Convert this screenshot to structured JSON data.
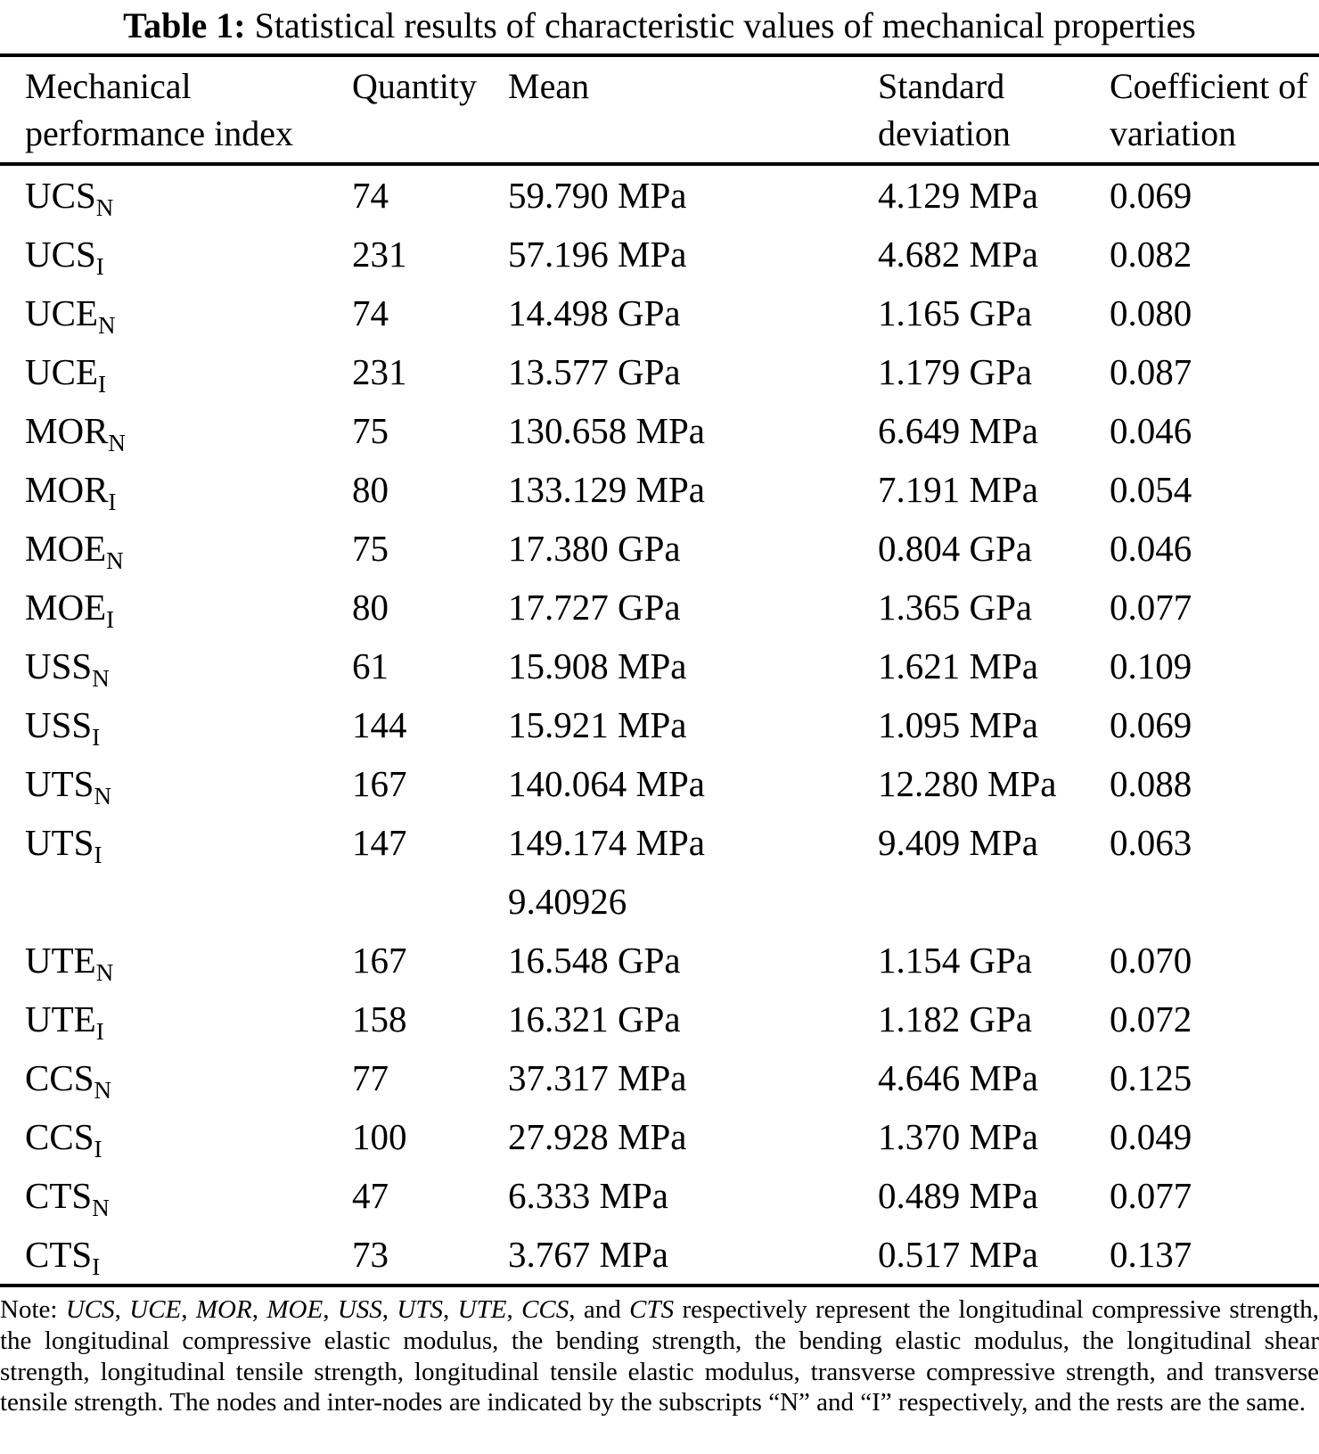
{
  "document": {
    "title": {
      "label": "Table 1:",
      "text": "Statistical results of characteristic values of mechanical properties"
    }
  },
  "table": {
    "headers": [
      "Mechanical performance index",
      "Quantity",
      "Mean",
      "Standard deviation",
      "Coefficient of variation"
    ],
    "rows": [
      {
        "index": "UCS",
        "sub": "N",
        "quantity": "74",
        "mean": [
          "59.790 MPa"
        ],
        "std": "4.129 MPa",
        "cov": "0.069"
      },
      {
        "index": "UCS",
        "sub": "I",
        "quantity": "231",
        "mean": [
          "57.196 MPa"
        ],
        "std": "4.682 MPa",
        "cov": "0.082"
      },
      {
        "index": "UCE",
        "sub": "N",
        "quantity": "74",
        "mean": [
          "14.498 GPa"
        ],
        "std": "1.165 GPa",
        "cov": "0.080"
      },
      {
        "index": "UCE",
        "sub": "I",
        "quantity": "231",
        "mean": [
          "13.577 GPa"
        ],
        "std": "1.179 GPa",
        "cov": "0.087"
      },
      {
        "index": "MOR",
        "sub": "N",
        "quantity": "75",
        "mean": [
          "130.658 MPa"
        ],
        "std": "6.649 MPa",
        "cov": "0.046"
      },
      {
        "index": "MOR",
        "sub": "I",
        "quantity": "80",
        "mean": [
          "133.129 MPa"
        ],
        "std": "7.191 MPa",
        "cov": "0.054"
      },
      {
        "index": "MOE",
        "sub": "N",
        "quantity": "75",
        "mean": [
          "17.380 GPa"
        ],
        "std": "0.804 GPa",
        "cov": "0.046"
      },
      {
        "index": "MOE",
        "sub": "I",
        "quantity": "80",
        "mean": [
          "17.727 GPa"
        ],
        "std": "1.365 GPa",
        "cov": "0.077"
      },
      {
        "index": "USS",
        "sub": "N",
        "quantity": "61",
        "mean": [
          "15.908 MPa"
        ],
        "std": "1.621 MPa",
        "cov": "0.109"
      },
      {
        "index": "USS",
        "sub": "I",
        "quantity": "144",
        "mean": [
          "15.921 MPa"
        ],
        "std": "1.095 MPa",
        "cov": "0.069"
      },
      {
        "index": "UTS",
        "sub": "N",
        "quantity": "167",
        "mean": [
          "140.064 MPa"
        ],
        "std": "12.280 MPa",
        "cov": "0.088"
      },
      {
        "index": "UTS",
        "sub": "I",
        "quantity": "147",
        "mean": [
          "149.174 MPa",
          "9.40926"
        ],
        "std": "9.409 MPa",
        "cov": "0.063"
      },
      {
        "index": "UTE",
        "sub": "N",
        "quantity": "167",
        "mean": [
          "16.548 GPa"
        ],
        "std": "1.154 GPa",
        "cov": "0.070"
      },
      {
        "index": "UTE",
        "sub": "I",
        "quantity": "158",
        "mean": [
          "16.321 GPa"
        ],
        "std": "1.182 GPa",
        "cov": "0.072"
      },
      {
        "index": "CCS",
        "sub": "N",
        "quantity": "77",
        "mean": [
          "37.317 MPa"
        ],
        "std": "4.646 MPa",
        "cov": "0.125"
      },
      {
        "index": "CCS",
        "sub": "I",
        "quantity": "100",
        "mean": [
          "27.928 MPa"
        ],
        "std": "1.370 MPa",
        "cov": "0.049"
      },
      {
        "index": "CTS",
        "sub": "N",
        "quantity": "47",
        "mean": [
          "6.333 MPa"
        ],
        "std": "0.489 MPa",
        "cov": "0.077"
      },
      {
        "index": "CTS",
        "sub": "I",
        "quantity": "73",
        "mean": [
          "3.767 MPa"
        ],
        "std": "0.517 MPa",
        "cov": "0.137"
      }
    ]
  },
  "note": {
    "segments": [
      {
        "text": "Note: ",
        "italic": false
      },
      {
        "text": "UCS",
        "italic": true
      },
      {
        "text": ", ",
        "italic": false
      },
      {
        "text": "UCE",
        "italic": true
      },
      {
        "text": ", ",
        "italic": false
      },
      {
        "text": "MOR",
        "italic": true
      },
      {
        "text": ", ",
        "italic": false
      },
      {
        "text": "MOE",
        "italic": true
      },
      {
        "text": ", ",
        "italic": false
      },
      {
        "text": "USS",
        "italic": true
      },
      {
        "text": ", ",
        "italic": false
      },
      {
        "text": "UTS",
        "italic": true
      },
      {
        "text": ", ",
        "italic": false
      },
      {
        "text": "UTE",
        "italic": true
      },
      {
        "text": ", ",
        "italic": false
      },
      {
        "text": "CCS",
        "italic": true
      },
      {
        "text": ", and ",
        "italic": false
      },
      {
        "text": "CTS",
        "italic": true
      },
      {
        "text": " respectively represent the longitudinal compressive strength, the longitudinal compressive elastic modulus, the bending strength, the bending elastic modulus, the longitudinal shear strength, longitudinal tensile strength, longitudinal tensile elastic modulus, transverse compressive strength, and transverse tensile strength. The nodes and inter-nodes are indicated by the subscripts “N” and “I” respectively, and the rests are the same.",
        "italic": false
      }
    ]
  }
}
